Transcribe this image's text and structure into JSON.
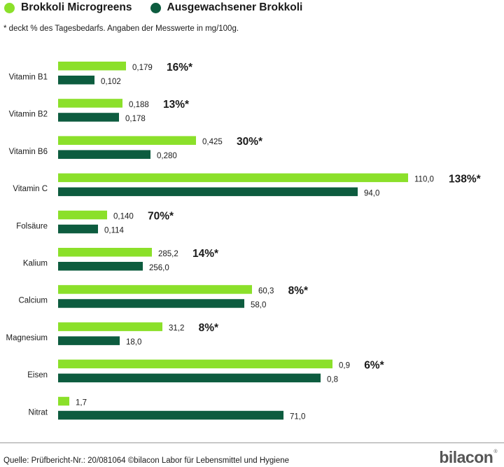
{
  "legend": {
    "items": [
      {
        "label": "Brokkoli Microgreens",
        "color": "#8be02a"
      },
      {
        "label": "Ausgewachsener Brokkoli",
        "color": "#0d5c3f"
      }
    ]
  },
  "footnote": "* deckt % des Tagesbedarfs. Angaben der Messwerte in mg/100g.",
  "chart_data": {
    "type": "bar",
    "orientation": "horizontal",
    "scale": "independent per category",
    "categories": [
      "Vitamin B1",
      "Vitamin B2",
      "Vitamin B6",
      "Vitamin C",
      "Folsäure",
      "Kalium",
      "Calcium",
      "Magnesium",
      "Eisen",
      "Nitrat"
    ],
    "series": [
      {
        "name": "Brokkoli Microgreens",
        "color": "#8be02a",
        "values": [
          0.179,
          0.188,
          0.425,
          110.0,
          0.14,
          285.2,
          60.3,
          31.2,
          0.9,
          1.7
        ],
        "labels": [
          "0,179",
          "0,188",
          "0,425",
          "110,0",
          "0,140",
          "285,2",
          "60,3",
          "31,2",
          "0,9",
          "1,7"
        ]
      },
      {
        "name": "Ausgewachsener Brokkoli",
        "color": "#0d5c3f",
        "values": [
          0.102,
          0.178,
          0.28,
          94.0,
          0.114,
          256.0,
          58.0,
          18.0,
          0.8,
          71.0
        ],
        "labels": [
          "0,102",
          "0,178",
          "0,280",
          "94,0",
          "0,114",
          "256,0",
          "58,0",
          "18,0",
          "0,8",
          "71,0"
        ]
      }
    ],
    "daily_value_labels": [
      "16%*",
      "13%*",
      "30%*",
      "138%*",
      "70%*",
      "14%*",
      "8%*",
      "8%*",
      "6%*",
      ""
    ]
  },
  "source": "Quelle: Prüfbericht-Nr.: 20/081064 ©bilacon Labor für Lebensmittel und Hygiene",
  "logo": {
    "text": "bilacon",
    "mark": "®"
  }
}
